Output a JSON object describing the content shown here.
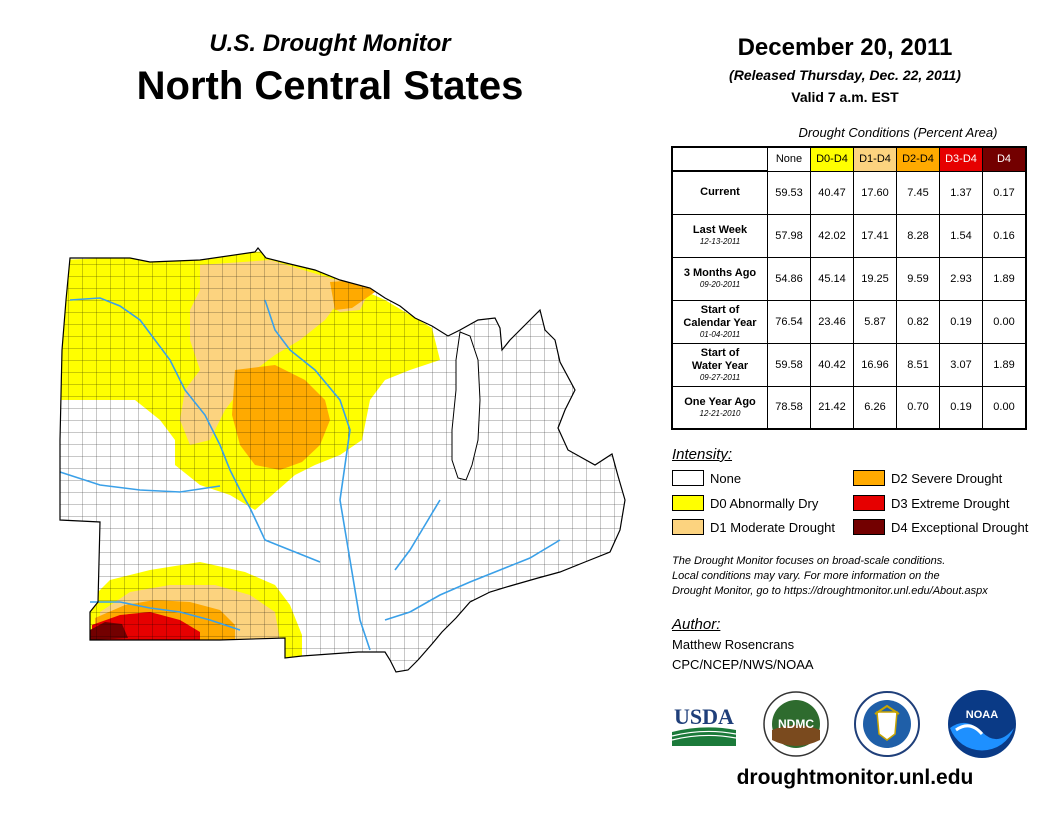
{
  "header": {
    "subtitle": "U.S. Drought Monitor",
    "title": "North Central States",
    "date": "December 20, 2011",
    "released": "(Released Thursday, Dec. 22, 2011)",
    "valid": "Valid 7 a.m. EST"
  },
  "stats": {
    "caption": "Drought Conditions (Percent Area)",
    "columns": [
      {
        "label": "None",
        "color": "#ffffff",
        "text_color": "#000000"
      },
      {
        "label": "D0-D4",
        "color": "#ffff00",
        "text_color": "#000000"
      },
      {
        "label": "D1-D4",
        "color": "#fcd37f",
        "text_color": "#000000"
      },
      {
        "label": "D2-D4",
        "color": "#ffaa00",
        "text_color": "#000000"
      },
      {
        "label": "D3-D4",
        "color": "#e60000",
        "text_color": "#ffffff"
      },
      {
        "label": "D4",
        "color": "#730000",
        "text_color": "#ffffff"
      }
    ],
    "rows": [
      {
        "line1": "Current",
        "line2": "",
        "date": "",
        "values": [
          "59.53",
          "40.47",
          "17.60",
          "7.45",
          "1.37",
          "0.17"
        ]
      },
      {
        "line1": "Last Week",
        "line2": "",
        "date": "12-13-2011",
        "values": [
          "57.98",
          "42.02",
          "17.41",
          "8.28",
          "1.54",
          "0.16"
        ]
      },
      {
        "line1": "3 Months Ago",
        "line2": "",
        "date": "09-20-2011",
        "values": [
          "54.86",
          "45.14",
          "19.25",
          "9.59",
          "2.93",
          "1.89"
        ]
      },
      {
        "line1": "Start of",
        "line2": "Calendar Year",
        "date": "01-04-2011",
        "values": [
          "76.54",
          "23.46",
          "5.87",
          "0.82",
          "0.19",
          "0.00"
        ]
      },
      {
        "line1": "Start of",
        "line2": "Water Year",
        "date": "09-27-2011",
        "values": [
          "59.58",
          "40.42",
          "16.96",
          "8.51",
          "3.07",
          "1.89"
        ]
      },
      {
        "line1": "One Year Ago",
        "line2": "",
        "date": "12-21-2010",
        "values": [
          "78.58",
          "21.42",
          "6.26",
          "0.70",
          "0.19",
          "0.00"
        ]
      }
    ]
  },
  "legend": {
    "title": "Intensity:",
    "items": [
      {
        "label": "None",
        "color": "#ffffff"
      },
      {
        "label": "D0 Abnormally Dry",
        "color": "#ffff00"
      },
      {
        "label": "D1 Moderate Drought",
        "color": "#fcd37f"
      },
      {
        "label": "D2 Severe Drought",
        "color": "#ffaa00"
      },
      {
        "label": "D3 Extreme Drought",
        "color": "#e60000"
      },
      {
        "label": "D4 Exceptional Drought",
        "color": "#730000"
      }
    ]
  },
  "note": {
    "line1": "The Drought Monitor focuses on broad-scale conditions.",
    "line2": "Local conditions may vary. For more information on the",
    "line3": "Drought Monitor, go to https://droughtmonitor.unl.edu/About.aspx"
  },
  "author": {
    "title": "Author:",
    "name": "Matthew Rosencrans",
    "org": "CPC/NCEP/NWS/NOAA"
  },
  "logos": {
    "usda": "USDA",
    "ndmc": "NDMC",
    "noaa": "NOAA"
  },
  "footer": {
    "site": "droughtmonitor.unl.edu"
  },
  "map_colors": {
    "none": "#ffffff",
    "d0": "#ffff00",
    "d1": "#fcd37f",
    "d2": "#ffaa00",
    "d3": "#e60000",
    "d4": "#730000",
    "water": "#3aa0e8",
    "lake": "#ffffff"
  }
}
